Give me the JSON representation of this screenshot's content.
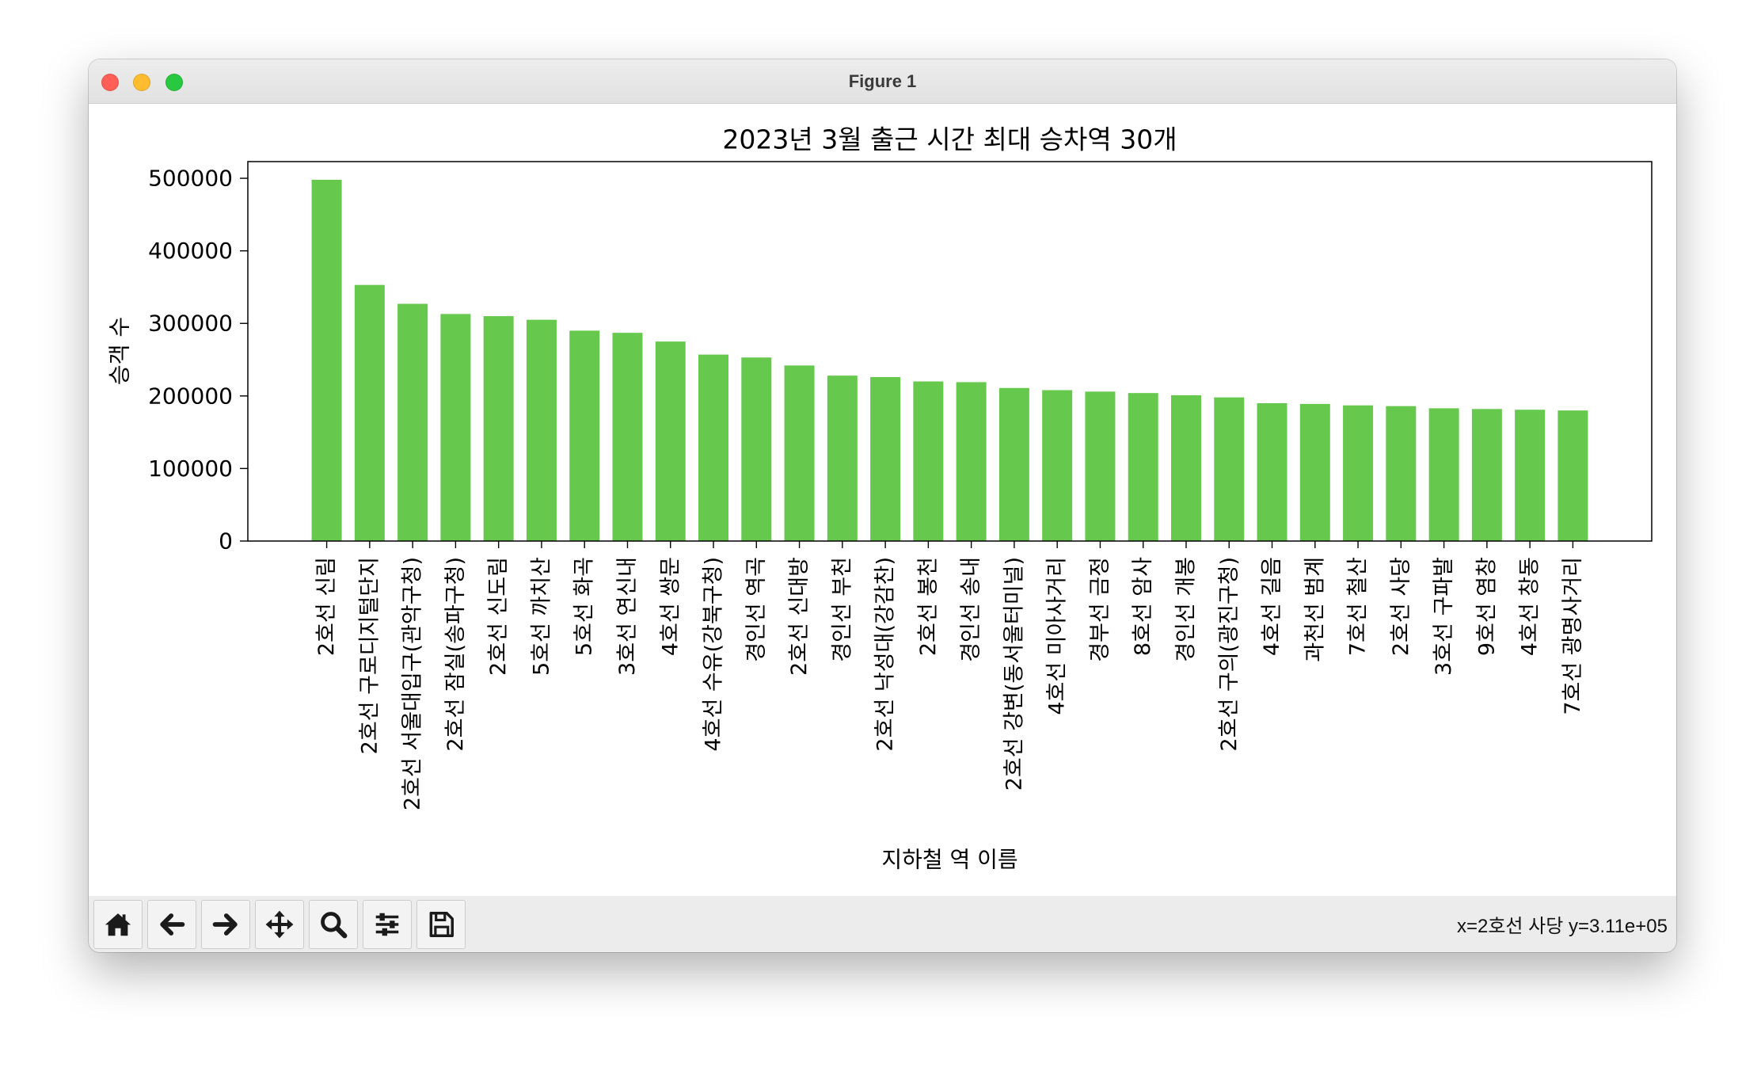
{
  "window": {
    "title": "Figure 1",
    "traffic_lights": {
      "close": "#ff5f57",
      "minimize": "#febc2e",
      "zoom": "#28c840"
    }
  },
  "chart_data": {
    "type": "bar",
    "title": "2023년 3월 출근 시간 최대 승차역 30개",
    "xlabel": "지하철 역 이름",
    "ylabel": "승객 수",
    "categories": [
      "2호선 신림",
      "2호선 구로디지털단지",
      "2호선 서울대입구(관악구청)",
      "2호선 잠실(송파구청)",
      "2호선 신도림",
      "5호선 까치산",
      "5호선 화곡",
      "3호선 연신내",
      "4호선 쌍문",
      "4호선 수유(강북구청)",
      "경인선 역곡",
      "2호선 신대방",
      "경인선 부천",
      "2호선 낙성대(강감찬)",
      "2호선 봉천",
      "경인선 송내",
      "2호선 강변(동서울터미널)",
      "4호선 미아사거리",
      "경부선 금정",
      "8호선 암사",
      "경인선 개봉",
      "2호선 구의(광진구청)",
      "4호선 길음",
      "과천선 범계",
      "7호선 철산",
      "2호선 사당",
      "3호선 구파발",
      "9호선 염창",
      "4호선 창동",
      "7호선 광명사거리"
    ],
    "values": [
      498000,
      353000,
      327000,
      313000,
      310000,
      305000,
      290000,
      287000,
      275000,
      257000,
      253000,
      242000,
      228000,
      226000,
      220000,
      219000,
      211000,
      208000,
      206000,
      204000,
      201000,
      198000,
      190000,
      189000,
      187000,
      186000,
      183000,
      182000,
      181000,
      180000
    ],
    "ylim": [
      0,
      523000
    ],
    "yticks": [
      0,
      100000,
      200000,
      300000,
      400000,
      500000
    ],
    "grid": false,
    "bar_color": "#66c94d"
  },
  "toolbar": {
    "buttons": [
      "home-icon",
      "back-icon",
      "forward-icon",
      "pan-icon",
      "zoom-icon",
      "configure-subplots-icon",
      "save-icon"
    ],
    "status": "x=2호선 사당 y=3.11e+05"
  }
}
